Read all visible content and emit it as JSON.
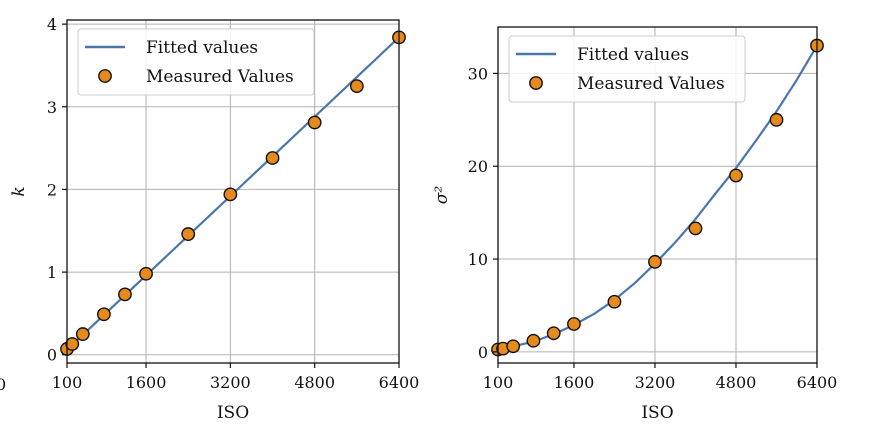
{
  "chart_data": [
    {
      "type": "line+scatter",
      "xlabel": "ISO",
      "ylabel": "k",
      "ylabel_style": "italic",
      "xlim": [
        100,
        6400
      ],
      "ylim": [
        -0.1,
        4.05
      ],
      "xticks": [
        100,
        1600,
        3200,
        4800,
        6400
      ],
      "yticks": [
        0,
        1,
        2,
        3,
        4
      ],
      "grid": true,
      "legend_position": "top-left",
      "series": [
        {
          "name": "Fitted values",
          "kind": "line",
          "color": "#4a76ab",
          "x": [
            100,
            6400
          ],
          "y": [
            0.06,
            3.84
          ]
        },
        {
          "name": "Measured Values",
          "kind": "scatter",
          "color": "#e68a1e",
          "edge_color": "#111111",
          "x": [
            100,
            200,
            400,
            800,
            1200,
            1600,
            2400,
            3200,
            4000,
            4800,
            5600,
            6400
          ],
          "y": [
            0.07,
            0.13,
            0.25,
            0.49,
            0.73,
            0.98,
            1.46,
            1.94,
            2.38,
            2.81,
            3.25,
            3.84
          ]
        }
      ]
    },
    {
      "type": "line+scatter",
      "xlabel": "ISO",
      "ylabel": "σ²",
      "ylabel_style": "italic",
      "xlim": [
        100,
        6400
      ],
      "ylim": [
        -1.2,
        35
      ],
      "xticks": [
        100,
        1600,
        3200,
        4800,
        6400
      ],
      "yticks": [
        0,
        10,
        20,
        30
      ],
      "grid": true,
      "legend_position": "top-left",
      "series": [
        {
          "name": "Fitted values",
          "kind": "line",
          "color": "#4a76ab",
          "x": [
            100,
            400,
            800,
            1200,
            1600,
            2000,
            2400,
            2800,
            3200,
            3600,
            4000,
            4400,
            4800,
            5200,
            5600,
            6000,
            6400
          ],
          "y": [
            0.3,
            0.6,
            1.1,
            1.9,
            2.9,
            4.1,
            5.6,
            7.4,
            9.5,
            11.8,
            14.3,
            17.1,
            19.8,
            22.8,
            25.9,
            29.3,
            33.0
          ]
        },
        {
          "name": "Measured Values",
          "kind": "scatter",
          "color": "#e68a1e",
          "edge_color": "#111111",
          "x": [
            100,
            200,
            400,
            800,
            1200,
            1600,
            2400,
            3200,
            4000,
            4800,
            5600,
            6400
          ],
          "y": [
            0.25,
            0.35,
            0.6,
            1.2,
            2.0,
            3.0,
            5.4,
            9.7,
            13.3,
            19.0,
            25.0,
            33.0
          ]
        }
      ]
    }
  ],
  "stray_label": "0"
}
